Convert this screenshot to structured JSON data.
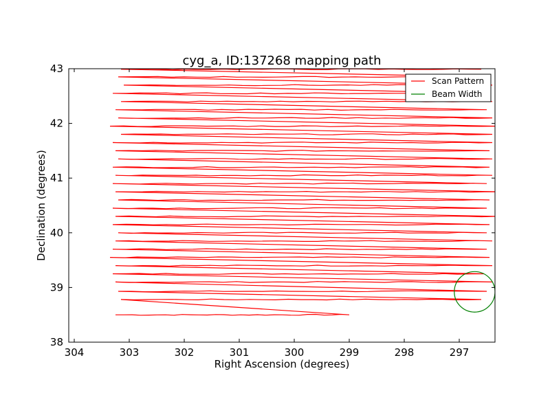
{
  "chart_data": {
    "type": "line",
    "title": "cyg_a, ID:137268 mapping path",
    "xlabel": "Right Ascension (degrees)",
    "ylabel": "Declination (degrees)",
    "xlim": [
      304.1,
      296.35
    ],
    "ylim": [
      38,
      43
    ],
    "x_ticks": [
      304,
      303,
      302,
      301,
      300,
      299,
      298,
      297
    ],
    "y_ticks": [
      38,
      39,
      40,
      41,
      42,
      43
    ],
    "grid": false,
    "legend_position": "top-right",
    "legend": [
      {
        "label": "Scan Pattern",
        "color": "#ff0000"
      },
      {
        "label": "Beam Width",
        "color": "#008000"
      }
    ],
    "series": [
      {
        "name": "Scan Pattern",
        "color": "#ff0000",
        "decs": [
          38.5,
          38.78,
          38.93,
          39.1,
          39.25,
          39.4,
          39.55,
          39.7,
          39.85,
          40.0,
          40.15,
          40.3,
          40.45,
          40.6,
          40.75,
          40.9,
          41.05,
          41.2,
          41.35,
          41.5,
          41.65,
          41.8,
          41.95,
          42.1,
          42.25,
          42.4,
          42.55,
          42.7,
          42.85,
          42.99
        ],
        "ra_start": [
          303.25,
          303.15,
          303.2,
          303.25,
          303.3,
          303.25,
          303.35,
          303.3,
          303.25,
          303.2,
          303.3,
          303.25,
          303.3,
          303.2,
          303.25,
          303.3,
          303.25,
          303.3,
          303.2,
          303.25,
          303.3,
          303.15,
          303.35,
          303.2,
          303.25,
          303.15,
          303.3,
          303.1,
          303.2,
          303.15
        ],
        "ra_end": [
          299.0,
          296.6,
          296.5,
          296.4,
          296.55,
          296.4,
          296.45,
          296.5,
          296.4,
          296.5,
          296.45,
          296.35,
          296.5,
          296.45,
          296.3,
          296.5,
          296.4,
          296.45,
          296.4,
          296.45,
          296.4,
          296.4,
          296.35,
          296.4,
          296.5,
          296.4,
          296.45,
          296.4,
          296.5,
          296.6
        ]
      },
      {
        "name": "Beam Width",
        "color": "#008000",
        "center": [
          296.72,
          38.92
        ],
        "radius_deg": 0.37
      }
    ]
  }
}
